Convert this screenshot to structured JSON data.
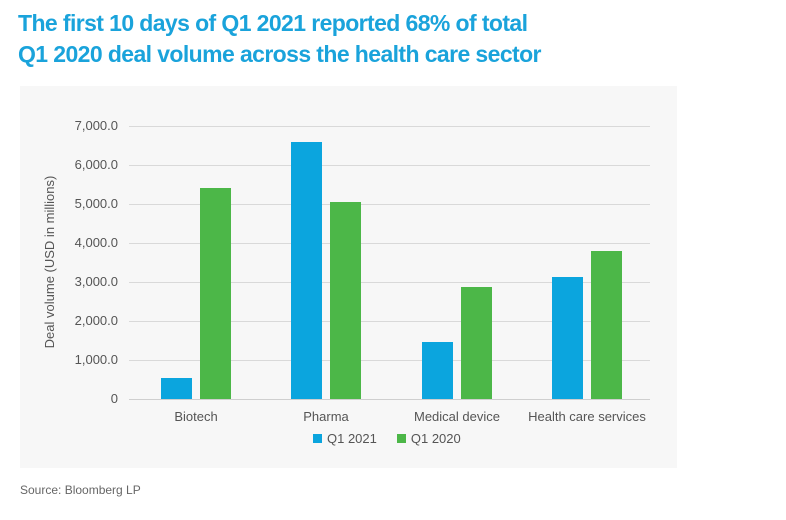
{
  "title": {
    "line1": "The first 10 days of Q1 2021 reported 68% of total",
    "line2": "Q1 2020 deal volume across the health care sector"
  },
  "source": "Source:  Bloomberg LP",
  "colors": {
    "title": "#1aa3db",
    "q1_2021": "#0ba5de",
    "q1_2020": "#4cb748",
    "panel_bg": "#f7f7f7"
  },
  "chart_data": {
    "type": "bar",
    "title": "The first 10 days of Q1 2021 reported 68% of total Q1 2020 deal volume across the health care sector",
    "xlabel": "",
    "ylabel": "Deal volume (USD in millions)",
    "ylim": [
      0,
      7000
    ],
    "yticks": [
      "0",
      "1,000.0",
      "2,000.0",
      "3,000.0",
      "4,000.0",
      "5,000.0",
      "6,000.0",
      "7,000.0"
    ],
    "grid": true,
    "legend_position": "bottom",
    "categories": [
      "Biotech",
      "Pharma",
      "Medical device",
      "Health care services"
    ],
    "series": [
      {
        "name": "Q1 2021",
        "color": "#0ba5de",
        "values": [
          540,
          6600,
          1460,
          3130
        ]
      },
      {
        "name": "Q1 2020",
        "color": "#4cb748",
        "values": [
          5420,
          5050,
          2870,
          3800
        ]
      }
    ],
    "source": "Bloomberg LP"
  }
}
